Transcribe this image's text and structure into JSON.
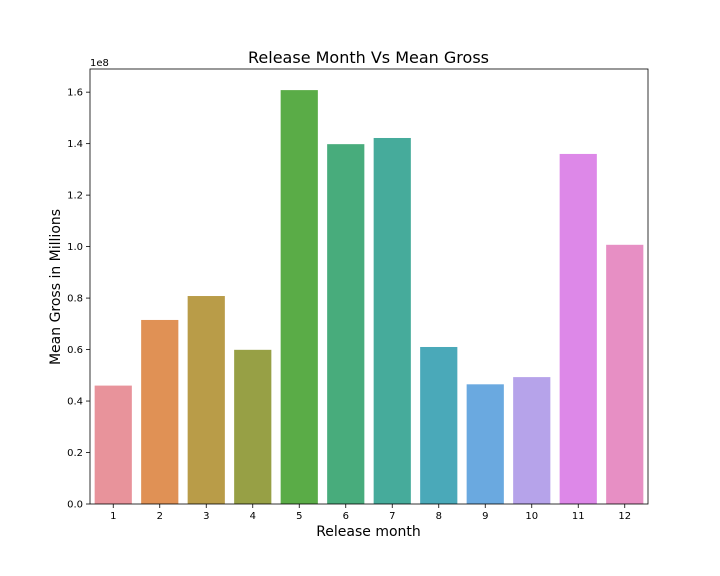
{
  "chart_data": {
    "type": "bar",
    "title": "Release Month Vs Mean Gross",
    "xlabel": "Release month",
    "ylabel": "Mean Gross in Millions",
    "y_offset_label": "1e8",
    "categories": [
      "1",
      "2",
      "3",
      "4",
      "5",
      "6",
      "7",
      "8",
      "9",
      "10",
      "11",
      "12"
    ],
    "values": [
      46000000,
      71500000,
      80800000,
      59900000,
      160800000,
      139800000,
      142200000,
      61000000,
      46500000,
      49300000,
      136000000,
      100700000
    ],
    "ylim": [
      0,
      169000000
    ],
    "yticks": [
      0,
      20000000,
      40000000,
      60000000,
      80000000,
      100000000,
      120000000,
      140000000,
      160000000
    ],
    "ytick_labels": [
      "0.0",
      "0.2",
      "0.4",
      "0.6",
      "0.8",
      "1.0",
      "1.2",
      "1.4",
      "1.6"
    ],
    "colors": [
      "#e8939b",
      "#e09155",
      "#b99c48",
      "#97a045",
      "#5aac47",
      "#48ac7c",
      "#46ab9b",
      "#4aa9b9",
      "#6aa9e0",
      "#b6a3ea",
      "#dd88e8",
      "#e78fc4"
    ],
    "grid": false,
    "legend": "none"
  }
}
